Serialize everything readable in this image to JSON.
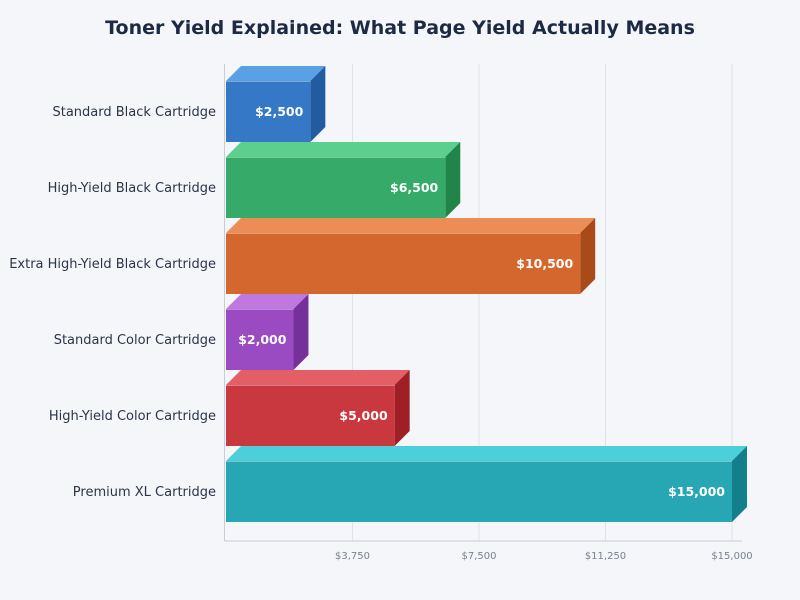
{
  "chart_data": {
    "type": "bar",
    "orientation": "horizontal",
    "title": "Toner Yield Explained: What Page Yield Actually Means",
    "xlabel": "",
    "ylabel": "",
    "categories": [
      "Standard Black Cartridge",
      "High-Yield Black Cartridge",
      "Extra High-Yield Black Cartridge",
      "Standard Color Cartridge",
      "High-Yield Color Cartridge",
      "Premium XL Cartridge"
    ],
    "values": [
      2500,
      6500,
      10500,
      2000,
      5000,
      15000
    ],
    "value_labels": [
      "$2,500",
      "$6,500",
      "$10,500",
      "$2,000",
      "$5,000",
      "$15,000"
    ],
    "xlim": [
      0,
      15000
    ],
    "ticks": [
      3750,
      7500,
      11250,
      15000
    ],
    "tick_labels": [
      "$3,750",
      "$7,500",
      "$11,250",
      "$15,000"
    ],
    "grid": true,
    "style": "3d-bar",
    "colors": [
      {
        "front": "#3478c6",
        "top": "#5aa0e4",
        "side": "#215ca0"
      },
      {
        "front": "#36ab69",
        "top": "#5cce8d",
        "side": "#218449"
      },
      {
        "front": "#d4672e",
        "top": "#ec8d55",
        "side": "#a94b18"
      },
      {
        "front": "#9b4bc1",
        "top": "#be78de",
        "side": "#75309c"
      },
      {
        "front": "#c8383e",
        "top": "#e35f65",
        "side": "#9f1f26"
      },
      {
        "front": "#27a6b3",
        "top": "#4ccfdb",
        "side": "#137f8c"
      }
    ]
  }
}
